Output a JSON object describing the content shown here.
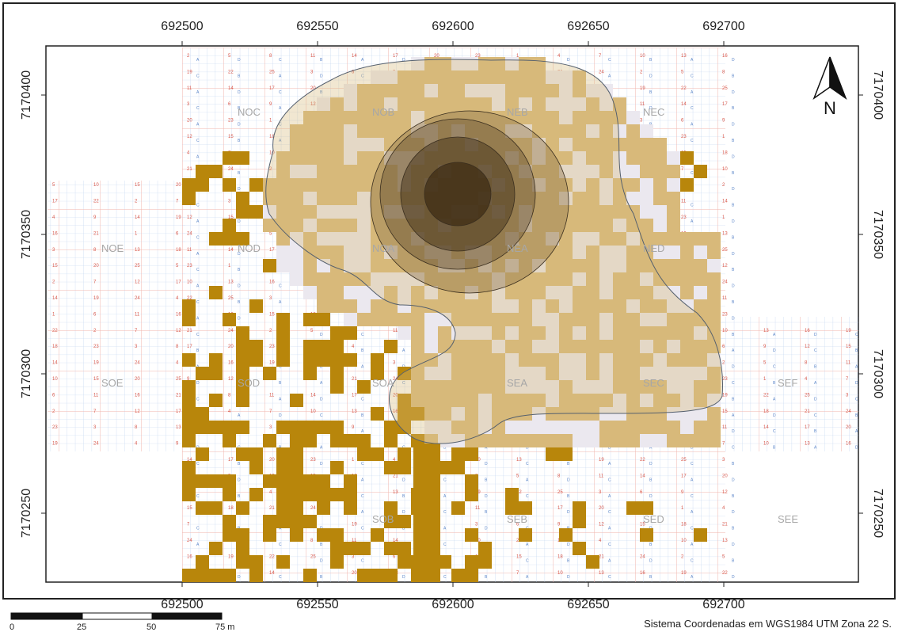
{
  "map": {
    "x_ticks": [
      "692500",
      "692550",
      "692600",
      "692650",
      "692700"
    ],
    "y_ticks": [
      "7170400",
      "7170350",
      "7170300",
      "7170250"
    ],
    "sectors": [
      "NOC",
      "NOB",
      "NEB",
      "NEC",
      "NOE",
      "NOD",
      "NOA",
      "NEA",
      "NED",
      "SOE",
      "SOD",
      "SOA",
      "SEA",
      "SEC",
      "SEF",
      "SOB",
      "SEB",
      "SED",
      "SEE"
    ],
    "north_label": "N",
    "scale_labels": [
      "0",
      "25",
      "50",
      "75 m"
    ],
    "crs_note": "Sistema Coordenadas em WGS1984 UTM Zona 22 S.",
    "colors": {
      "frame": "#222222",
      "grid_red": "#f1b5ae",
      "grid_blue": "#bcd0ee",
      "tile_light": "#ebe8ef",
      "tile_medium": "#d8b97a",
      "tile_dark": "#b8860b",
      "contour_1": "#8c7349",
      "contour_2": "#6b5532",
      "contour_3": "#4c3a20",
      "contour_4": "#37270f",
      "outline": "#55606e"
    }
  }
}
